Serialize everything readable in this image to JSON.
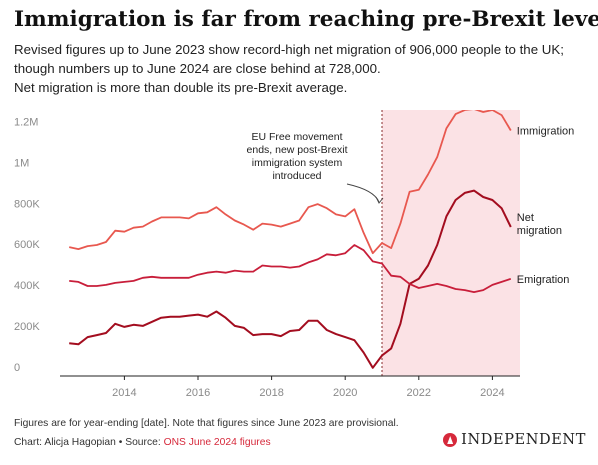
{
  "title": "Immigration is far from reaching pre-Brexit levels",
  "subtitle": [
    "Revised figures up to June 2023 show record-high net migration of 906,000 people to the UK; though numbers up to June 2024 are close behind at 728,000.",
    "Net migration is more than double its pre-Brexit average."
  ],
  "footnote": "Figures are for year-ending [date]. Note that figures since June 2023 are provisional.",
  "credit": {
    "prefix": "Chart: Alicja Hagopian • Source: ",
    "source": "ONS June 2024 figures"
  },
  "logo": {
    "icon": "eagle-icon",
    "text": "INDEPENDENT"
  },
  "colors": {
    "immigration": "#e8584f",
    "net_migration": "#a30d1f",
    "emigration": "#c81e3a",
    "post_brexit_shade": "#fbe2e5",
    "divider": "#8a2b2b",
    "source_link": "#d6293b"
  },
  "chart_data": {
    "type": "line",
    "title": "",
    "xlabel": "",
    "ylabel": "",
    "ylim": [
      0,
      1300000
    ],
    "xlim": [
      2012.25,
      2024.75
    ],
    "grid": false,
    "legend": "direct labels at right end of lines",
    "y_ticks": [
      {
        "value": 0,
        "label": "0"
      },
      {
        "value": 200000,
        "label": "200K"
      },
      {
        "value": 400000,
        "label": "400K"
      },
      {
        "value": 600000,
        "label": "600K"
      },
      {
        "value": 800000,
        "label": "800K"
      },
      {
        "value": 1000000,
        "label": "1M"
      },
      {
        "value": 1200000,
        "label": "1.2M"
      }
    ],
    "x_ticks": [
      {
        "value": 2014,
        "label": "2014"
      },
      {
        "value": 2016,
        "label": "2016"
      },
      {
        "value": 2018,
        "label": "2018"
      },
      {
        "value": 2020,
        "label": "2020"
      },
      {
        "value": 2022,
        "label": "2022"
      },
      {
        "value": 2024,
        "label": "2024"
      }
    ],
    "shaded_region": {
      "x_start": 2021,
      "x_end": 2024.75
    },
    "annotation": {
      "lines": [
        "EU Free movement",
        "ends, new post-Brexit",
        "immigration system",
        "introduced"
      ],
      "x": 2021
    },
    "series": [
      {
        "key": "immigration",
        "name": "Immigration",
        "label_lines": [
          "Immigration"
        ],
        "points": [
          [
            2012.5,
            630000
          ],
          [
            2012.75,
            620000
          ],
          [
            2013,
            635000
          ],
          [
            2013.25,
            640000
          ],
          [
            2013.5,
            655000
          ],
          [
            2013.75,
            710000
          ],
          [
            2014,
            705000
          ],
          [
            2014.25,
            725000
          ],
          [
            2014.5,
            730000
          ],
          [
            2014.75,
            755000
          ],
          [
            2015,
            775000
          ],
          [
            2015.25,
            775000
          ],
          [
            2015.5,
            775000
          ],
          [
            2015.75,
            770000
          ],
          [
            2016,
            795000
          ],
          [
            2016.25,
            800000
          ],
          [
            2016.5,
            825000
          ],
          [
            2016.75,
            790000
          ],
          [
            2017,
            760000
          ],
          [
            2017.25,
            740000
          ],
          [
            2017.5,
            715000
          ],
          [
            2017.75,
            745000
          ],
          [
            2018,
            740000
          ],
          [
            2018.25,
            730000
          ],
          [
            2018.5,
            745000
          ],
          [
            2018.75,
            760000
          ],
          [
            2019,
            825000
          ],
          [
            2019.25,
            840000
          ],
          [
            2019.5,
            820000
          ],
          [
            2019.75,
            790000
          ],
          [
            2020,
            780000
          ],
          [
            2020.25,
            815000
          ],
          [
            2020.5,
            700000
          ],
          [
            2020.75,
            600000
          ],
          [
            2021,
            650000
          ],
          [
            2021.25,
            625000
          ],
          [
            2021.5,
            745000
          ],
          [
            2021.75,
            900000
          ],
          [
            2022,
            910000
          ],
          [
            2022.25,
            985000
          ],
          [
            2022.5,
            1070000
          ],
          [
            2022.75,
            1210000
          ],
          [
            2023,
            1280000
          ],
          [
            2023.25,
            1300000
          ],
          [
            2023.5,
            1305000
          ],
          [
            2023.75,
            1290000
          ],
          [
            2024,
            1300000
          ],
          [
            2024.25,
            1275000
          ],
          [
            2024.5,
            1200000
          ]
        ]
      },
      {
        "key": "net_migration",
        "name": "Net migration",
        "label_lines": [
          "Net",
          "migration"
        ],
        "points": [
          [
            2012.5,
            160000
          ],
          [
            2012.75,
            155000
          ],
          [
            2013,
            190000
          ],
          [
            2013.25,
            200000
          ],
          [
            2013.5,
            210000
          ],
          [
            2013.75,
            255000
          ],
          [
            2014,
            240000
          ],
          [
            2014.25,
            250000
          ],
          [
            2014.5,
            245000
          ],
          [
            2014.75,
            265000
          ],
          [
            2015,
            285000
          ],
          [
            2015.25,
            290000
          ],
          [
            2015.5,
            290000
          ],
          [
            2015.75,
            295000
          ],
          [
            2016,
            300000
          ],
          [
            2016.25,
            290000
          ],
          [
            2016.5,
            315000
          ],
          [
            2016.75,
            285000
          ],
          [
            2017,
            245000
          ],
          [
            2017.25,
            235000
          ],
          [
            2017.5,
            200000
          ],
          [
            2017.75,
            205000
          ],
          [
            2018,
            205000
          ],
          [
            2018.25,
            195000
          ],
          [
            2018.5,
            220000
          ],
          [
            2018.75,
            225000
          ],
          [
            2019,
            270000
          ],
          [
            2019.25,
            270000
          ],
          [
            2019.5,
            225000
          ],
          [
            2019.75,
            205000
          ],
          [
            2020,
            190000
          ],
          [
            2020.25,
            175000
          ],
          [
            2020.5,
            115000
          ],
          [
            2020.75,
            40000
          ],
          [
            2021,
            100000
          ],
          [
            2021.25,
            135000
          ],
          [
            2021.5,
            255000
          ],
          [
            2021.75,
            450000
          ],
          [
            2022,
            475000
          ],
          [
            2022.25,
            540000
          ],
          [
            2022.5,
            640000
          ],
          [
            2022.75,
            780000
          ],
          [
            2023,
            860000
          ],
          [
            2023.25,
            895000
          ],
          [
            2023.5,
            906000
          ],
          [
            2023.75,
            875000
          ],
          [
            2024,
            860000
          ],
          [
            2024.25,
            820000
          ],
          [
            2024.5,
            728000
          ]
        ]
      },
      {
        "key": "emigration",
        "name": "Emigration",
        "label_lines": [
          "Emigration"
        ],
        "points": [
          [
            2012.5,
            465000
          ],
          [
            2012.75,
            460000
          ],
          [
            2013,
            440000
          ],
          [
            2013.25,
            440000
          ],
          [
            2013.5,
            445000
          ],
          [
            2013.75,
            455000
          ],
          [
            2014,
            460000
          ],
          [
            2014.25,
            465000
          ],
          [
            2014.5,
            480000
          ],
          [
            2014.75,
            485000
          ],
          [
            2015,
            480000
          ],
          [
            2015.25,
            480000
          ],
          [
            2015.5,
            480000
          ],
          [
            2015.75,
            480000
          ],
          [
            2016,
            495000
          ],
          [
            2016.25,
            505000
          ],
          [
            2016.5,
            510000
          ],
          [
            2016.75,
            505000
          ],
          [
            2017,
            515000
          ],
          [
            2017.25,
            510000
          ],
          [
            2017.5,
            510000
          ],
          [
            2017.75,
            540000
          ],
          [
            2018,
            535000
          ],
          [
            2018.25,
            535000
          ],
          [
            2018.5,
            530000
          ],
          [
            2018.75,
            535000
          ],
          [
            2019,
            555000
          ],
          [
            2019.25,
            570000
          ],
          [
            2019.5,
            595000
          ],
          [
            2019.75,
            590000
          ],
          [
            2020,
            600000
          ],
          [
            2020.25,
            640000
          ],
          [
            2020.5,
            615000
          ],
          [
            2020.75,
            560000
          ],
          [
            2021,
            550000
          ],
          [
            2021.25,
            490000
          ],
          [
            2021.5,
            485000
          ],
          [
            2021.75,
            450000
          ],
          [
            2022,
            430000
          ],
          [
            2022.25,
            440000
          ],
          [
            2022.5,
            450000
          ],
          [
            2022.75,
            440000
          ],
          [
            2023,
            425000
          ],
          [
            2023.25,
            420000
          ],
          [
            2023.5,
            410000
          ],
          [
            2023.75,
            420000
          ],
          [
            2024,
            445000
          ],
          [
            2024.25,
            460000
          ],
          [
            2024.5,
            475000
          ]
        ]
      }
    ]
  }
}
